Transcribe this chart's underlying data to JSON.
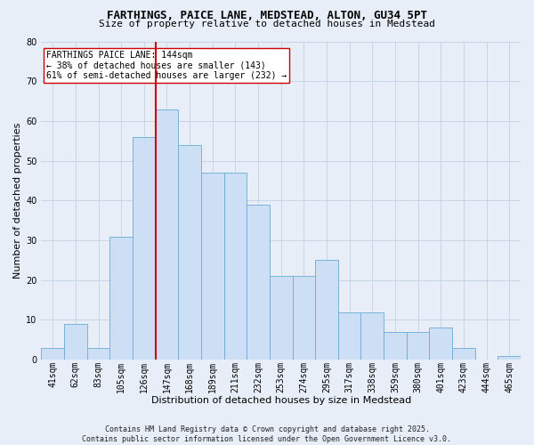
{
  "title": "FARTHINGS, PAICE LANE, MEDSTEAD, ALTON, GU34 5PT",
  "subtitle": "Size of property relative to detached houses in Medstead",
  "xlabel": "Distribution of detached houses by size in Medstead",
  "ylabel": "Number of detached properties",
  "bins": [
    "41sqm",
    "62sqm",
    "83sqm",
    "105sqm",
    "126sqm",
    "147sqm",
    "168sqm",
    "189sqm",
    "211sqm",
    "232sqm",
    "253sqm",
    "274sqm",
    "295sqm",
    "317sqm",
    "338sqm",
    "359sqm",
    "380sqm",
    "401sqm",
    "423sqm",
    "444sqm",
    "465sqm"
  ],
  "values": [
    3,
    9,
    3,
    31,
    56,
    63,
    54,
    47,
    47,
    39,
    21,
    21,
    25,
    12,
    12,
    7,
    7,
    8,
    3,
    0,
    1
  ],
  "bar_color": "#ccdff5",
  "bar_edge_color": "#6aaad4",
  "grid_color": "#c8d4e8",
  "bg_color": "#e8eef8",
  "red_line_color": "#cc0000",
  "annotation_text": "FARTHINGS PAICE LANE: 144sqm\n← 38% of detached houses are smaller (143)\n61% of semi-detached houses are larger (232) →",
  "annotation_box_facecolor": "#ffffff",
  "annotation_box_edgecolor": "#cc0000",
  "footer": "Contains HM Land Registry data © Crown copyright and database right 2025.\nContains public sector information licensed under the Open Government Licence v3.0.",
  "ylim": [
    0,
    80
  ],
  "yticks": [
    0,
    10,
    20,
    30,
    40,
    50,
    60,
    70,
    80
  ],
  "title_fontsize": 9,
  "subtitle_fontsize": 8,
  "tick_fontsize": 7,
  "ylabel_fontsize": 8,
  "xlabel_fontsize": 8,
  "footer_fontsize": 6
}
